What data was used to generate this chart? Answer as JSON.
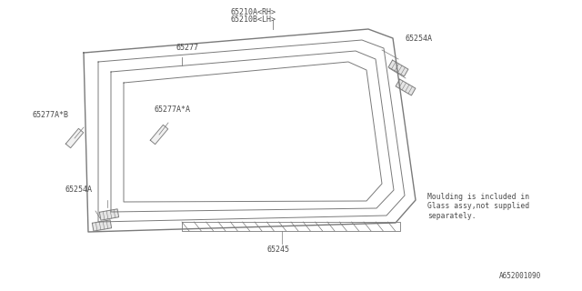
{
  "bg_color": "#ffffff",
  "line_color": "#7a7a7a",
  "text_color": "#4a4a4a",
  "part_number_label": "A652001090",
  "note": "Moulding is included in\nGlass assy,not supplied\nseparately.",
  "labels_65210": [
    "65210A<RH>",
    "65210B<LH>"
  ],
  "label_65277": "65277",
  "label_65277aA": "65277A*A",
  "label_65277aB": "65277A*B",
  "label_65254A_tr": "65254A",
  "label_65254A_bl": "65254A",
  "label_65245": "65245"
}
